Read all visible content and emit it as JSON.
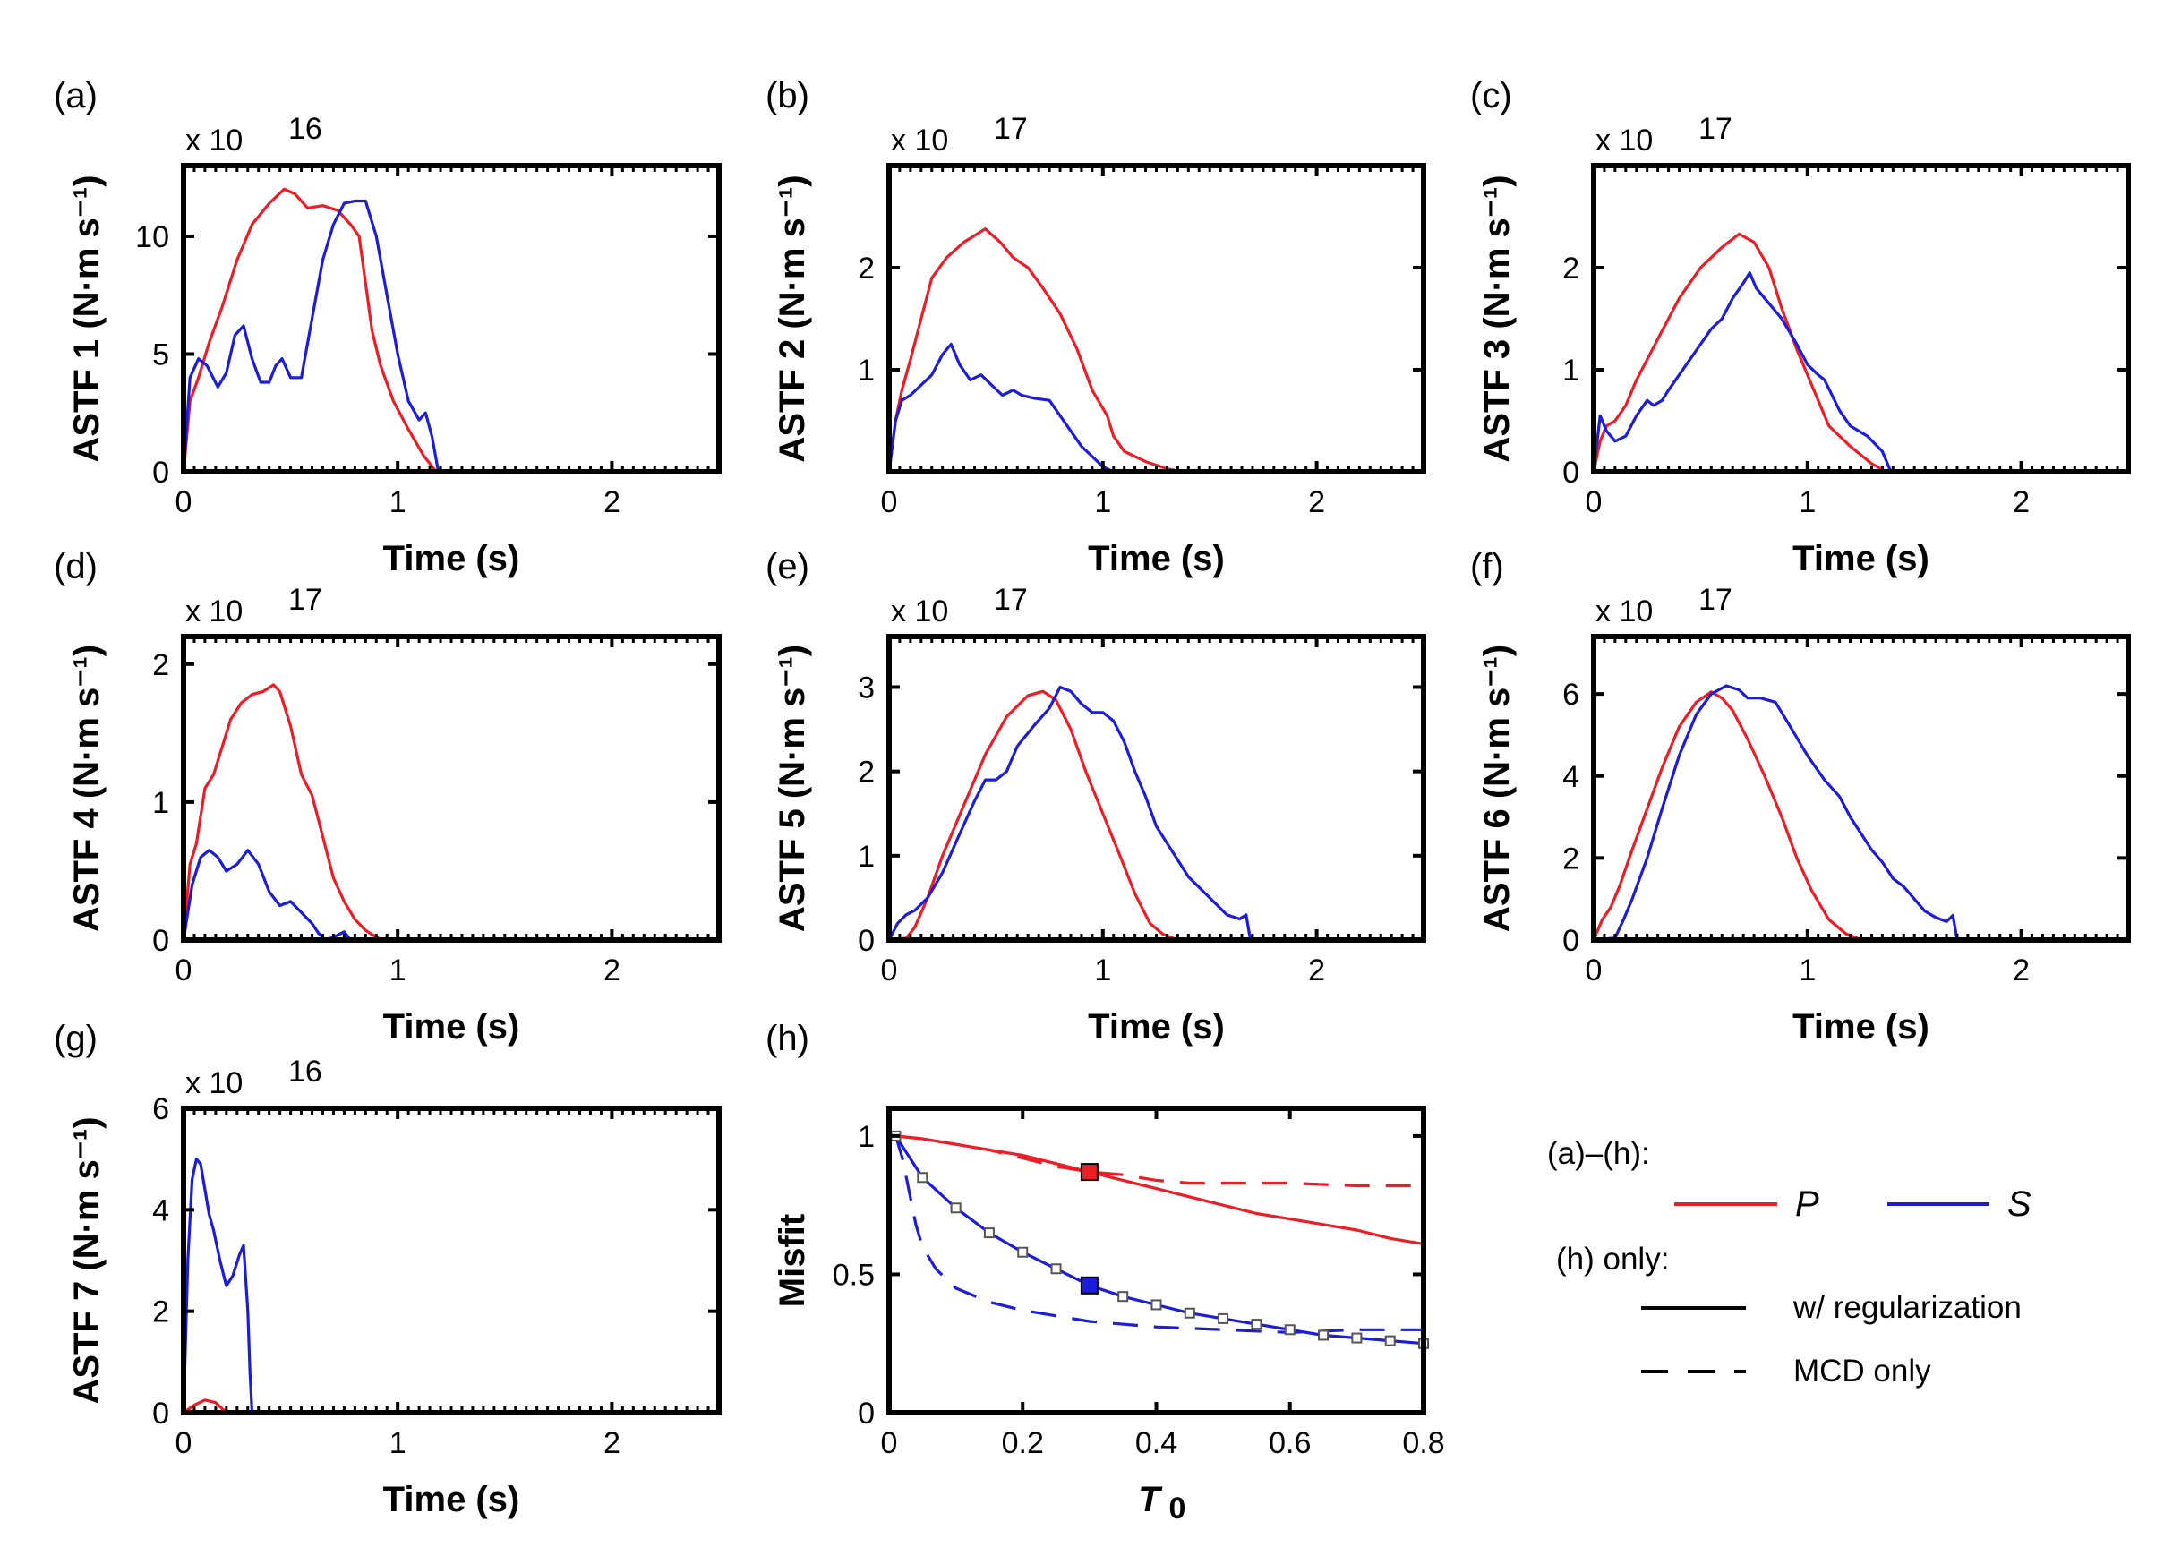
{
  "colors": {
    "P": "#ee1c24",
    "S": "#1c1cdc",
    "axis": "#000000"
  },
  "legend": {
    "heading_all": "(a)–(h):",
    "P_label": "P",
    "S_label": "S",
    "heading_h": "(h) only:",
    "solid_label": "w/ regularization",
    "dashed_label": "MCD only"
  },
  "chart_data": [
    {
      "type": "line",
      "panel": "(a)",
      "xlabel": "Time (s)",
      "ylabel": "ASTF 1 (N·m s⁻¹)",
      "multiplier": "x 10",
      "exponent": "16",
      "xlim": [
        0,
        2.5
      ],
      "ylim": [
        0,
        13
      ],
      "xticks": [
        0,
        1,
        2
      ],
      "yticks": [
        0,
        5,
        10
      ],
      "series": [
        {
          "name": "P",
          "x": [
            0,
            0.03,
            0.07,
            0.12,
            0.18,
            0.25,
            0.32,
            0.4,
            0.47,
            0.52,
            0.58,
            0.65,
            0.72,
            0.78,
            0.82,
            0.85,
            0.88,
            0.92,
            0.98,
            1.05,
            1.12,
            1.18
          ],
          "y": [
            0,
            3.0,
            4.0,
            5.5,
            7.0,
            9.0,
            10.5,
            11.4,
            12.0,
            11.8,
            11.2,
            11.3,
            11.1,
            10.5,
            10.0,
            8.0,
            6.0,
            4.5,
            3.0,
            1.8,
            0.7,
            0
          ]
        },
        {
          "name": "S",
          "x": [
            0,
            0.03,
            0.07,
            0.11,
            0.16,
            0.2,
            0.24,
            0.28,
            0.32,
            0.36,
            0.4,
            0.43,
            0.46,
            0.5,
            0.55,
            0.6,
            0.65,
            0.7,
            0.75,
            0.8,
            0.85,
            0.9,
            0.95,
            1.0,
            1.05,
            1.1,
            1.13,
            1.16,
            1.19
          ],
          "y": [
            0,
            4.0,
            4.8,
            4.5,
            3.6,
            4.2,
            5.8,
            6.2,
            4.8,
            3.8,
            3.8,
            4.5,
            4.8,
            4.0,
            4.0,
            6.5,
            9.0,
            10.5,
            11.4,
            11.5,
            11.5,
            10.0,
            7.5,
            5.0,
            3.0,
            2.2,
            2.5,
            1.5,
            0
          ]
        }
      ]
    },
    {
      "type": "line",
      "panel": "(b)",
      "xlabel": "Time (s)",
      "ylabel": "ASTF 2 (N·m s⁻¹)",
      "multiplier": "x 10",
      "exponent": "17",
      "xlim": [
        0,
        2.5
      ],
      "ylim": [
        0,
        3
      ],
      "xticks": [
        0,
        1,
        2
      ],
      "yticks": [
        1,
        2
      ],
      "series": [
        {
          "name": "P",
          "x": [
            0,
            0.03,
            0.06,
            0.1,
            0.15,
            0.2,
            0.27,
            0.35,
            0.45,
            0.52,
            0.58,
            0.65,
            0.72,
            0.8,
            0.88,
            0.95,
            1.02,
            1.05,
            1.1,
            1.2,
            1.3,
            1.37
          ],
          "y": [
            0,
            0.5,
            0.8,
            1.1,
            1.5,
            1.9,
            2.1,
            2.25,
            2.38,
            2.25,
            2.1,
            2.0,
            1.8,
            1.55,
            1.2,
            0.8,
            0.55,
            0.35,
            0.2,
            0.1,
            0.03,
            0
          ]
        },
        {
          "name": "S",
          "x": [
            0,
            0.03,
            0.06,
            0.1,
            0.15,
            0.2,
            0.25,
            0.29,
            0.33,
            0.38,
            0.43,
            0.48,
            0.53,
            0.58,
            0.62,
            0.68,
            0.75,
            0.8,
            0.85,
            0.9,
            0.95,
            1.0,
            1.05
          ],
          "y": [
            0,
            0.5,
            0.7,
            0.75,
            0.85,
            0.95,
            1.15,
            1.25,
            1.05,
            0.9,
            0.95,
            0.85,
            0.75,
            0.8,
            0.75,
            0.72,
            0.7,
            0.55,
            0.4,
            0.25,
            0.15,
            0.05,
            0
          ]
        }
      ]
    },
    {
      "type": "line",
      "panel": "(c)",
      "xlabel": "Time (s)",
      "ylabel": "ASTF 3 (N·m s⁻¹)",
      "multiplier": "x 10",
      "exponent": "17",
      "xlim": [
        0,
        2.5
      ],
      "ylim": [
        0,
        3
      ],
      "xticks": [
        0,
        1,
        2
      ],
      "yticks": [
        0,
        1,
        2
      ],
      "series": [
        {
          "name": "P",
          "x": [
            0,
            0.03,
            0.06,
            0.1,
            0.15,
            0.2,
            0.3,
            0.4,
            0.5,
            0.6,
            0.68,
            0.75,
            0.82,
            0.88,
            0.95,
            1.0,
            1.05,
            1.1,
            1.2,
            1.3,
            1.37
          ],
          "y": [
            0,
            0.3,
            0.45,
            0.5,
            0.65,
            0.9,
            1.3,
            1.7,
            2.0,
            2.2,
            2.33,
            2.25,
            2.0,
            1.6,
            1.2,
            0.95,
            0.7,
            0.45,
            0.25,
            0.08,
            0
          ]
        },
        {
          "name": "S",
          "x": [
            0,
            0.03,
            0.06,
            0.1,
            0.15,
            0.2,
            0.25,
            0.28,
            0.32,
            0.35,
            0.4,
            0.45,
            0.5,
            0.55,
            0.6,
            0.65,
            0.7,
            0.73,
            0.76,
            0.8,
            0.88,
            0.95,
            1.0,
            1.05,
            1.08,
            1.15,
            1.2,
            1.28,
            1.35,
            1.39
          ],
          "y": [
            0,
            0.55,
            0.4,
            0.3,
            0.35,
            0.55,
            0.7,
            0.65,
            0.7,
            0.8,
            0.95,
            1.1,
            1.25,
            1.4,
            1.5,
            1.7,
            1.85,
            1.95,
            1.8,
            1.7,
            1.5,
            1.25,
            1.05,
            0.95,
            0.9,
            0.6,
            0.45,
            0.35,
            0.2,
            0
          ]
        }
      ]
    },
    {
      "type": "line",
      "panel": "(d)",
      "xlabel": "Time (s)",
      "ylabel": "ASTF 4 (N·m s⁻¹)",
      "multiplier": "x 10",
      "exponent": "17",
      "xlim": [
        0,
        2.5
      ],
      "ylim": [
        0,
        2.2
      ],
      "xticks": [
        0,
        1,
        2
      ],
      "yticks": [
        0,
        1,
        2
      ],
      "series": [
        {
          "name": "P",
          "x": [
            0,
            0.03,
            0.06,
            0.1,
            0.14,
            0.18,
            0.22,
            0.27,
            0.32,
            0.37,
            0.42,
            0.45,
            0.5,
            0.55,
            0.6,
            0.65,
            0.7,
            0.75,
            0.8,
            0.85,
            0.9,
            0.93
          ],
          "y": [
            0,
            0.55,
            0.7,
            1.1,
            1.2,
            1.4,
            1.6,
            1.72,
            1.78,
            1.8,
            1.85,
            1.8,
            1.55,
            1.2,
            1.05,
            0.75,
            0.45,
            0.28,
            0.15,
            0.07,
            0.02,
            0
          ]
        },
        {
          "name": "S",
          "x": [
            0,
            0.04,
            0.08,
            0.12,
            0.16,
            0.2,
            0.25,
            0.3,
            0.35,
            0.4,
            0.45,
            0.5,
            0.55,
            0.6,
            0.63,
            0.66,
            0.7,
            0.75,
            0.78
          ],
          "y": [
            0,
            0.4,
            0.6,
            0.65,
            0.6,
            0.5,
            0.55,
            0.65,
            0.55,
            0.35,
            0.25,
            0.28,
            0.2,
            0.12,
            0.05,
            0.0,
            0.02,
            0.06,
            0
          ]
        }
      ]
    },
    {
      "type": "line",
      "panel": "(e)",
      "xlabel": "Time (s)",
      "ylabel": "ASTF 5 (N·m s⁻¹)",
      "multiplier": "x 10",
      "exponent": "17",
      "xlim": [
        0,
        2.5
      ],
      "ylim": [
        0,
        3.6
      ],
      "xticks": [
        0,
        1,
        2
      ],
      "yticks": [
        0,
        1,
        2,
        3
      ],
      "series": [
        {
          "name": "P",
          "x": [
            0,
            0.08,
            0.12,
            0.18,
            0.25,
            0.35,
            0.45,
            0.55,
            0.65,
            0.72,
            0.78,
            0.85,
            0.92,
            1.0,
            1.08,
            1.15,
            1.22,
            1.28,
            1.33,
            1.37
          ],
          "y": [
            0,
            0.02,
            0.15,
            0.5,
            1.0,
            1.6,
            2.2,
            2.65,
            2.9,
            2.95,
            2.85,
            2.5,
            2.0,
            1.5,
            1.0,
            0.55,
            0.2,
            0.07,
            0.02,
            0
          ]
        },
        {
          "name": "S",
          "x": [
            0,
            0.04,
            0.08,
            0.12,
            0.18,
            0.25,
            0.32,
            0.4,
            0.45,
            0.5,
            0.55,
            0.6,
            0.68,
            0.75,
            0.8,
            0.85,
            0.9,
            0.95,
            1.0,
            1.05,
            1.1,
            1.15,
            1.2,
            1.25,
            1.3,
            1.35,
            1.4,
            1.5,
            1.58,
            1.64,
            1.67,
            1.69
          ],
          "y": [
            0,
            0.2,
            0.3,
            0.35,
            0.5,
            0.8,
            1.2,
            1.65,
            1.9,
            1.9,
            2.0,
            2.3,
            2.55,
            2.75,
            3.0,
            2.95,
            2.8,
            2.7,
            2.7,
            2.6,
            2.35,
            2.0,
            1.7,
            1.35,
            1.15,
            0.95,
            0.75,
            0.5,
            0.3,
            0.25,
            0.3,
            0
          ]
        }
      ]
    },
    {
      "type": "line",
      "panel": "(f)",
      "xlabel": "Time (s)",
      "ylabel": "ASTF 6 (N·m s⁻¹)",
      "multiplier": "x 10",
      "exponent": "17",
      "xlim": [
        0,
        2.5
      ],
      "ylim": [
        0,
        7.4
      ],
      "xticks": [
        0,
        1,
        2
      ],
      "yticks": [
        0,
        2,
        4,
        6
      ],
      "series": [
        {
          "name": "P",
          "x": [
            0,
            0.04,
            0.08,
            0.12,
            0.18,
            0.25,
            0.32,
            0.4,
            0.48,
            0.55,
            0.6,
            0.65,
            0.72,
            0.8,
            0.88,
            0.95,
            1.02,
            1.1,
            1.18,
            1.24,
            1.28
          ],
          "y": [
            0,
            0.5,
            0.8,
            1.3,
            2.2,
            3.2,
            4.2,
            5.2,
            5.8,
            6.05,
            5.9,
            5.6,
            4.9,
            4.0,
            3.0,
            2.0,
            1.2,
            0.5,
            0.15,
            0.03,
            0
          ]
        },
        {
          "name": "S",
          "x": [
            0,
            0.1,
            0.14,
            0.18,
            0.25,
            0.32,
            0.4,
            0.48,
            0.55,
            0.62,
            0.68,
            0.72,
            0.78,
            0.85,
            0.92,
            1.0,
            1.08,
            1.15,
            1.2,
            1.25,
            1.3,
            1.35,
            1.4,
            1.45,
            1.5,
            1.55,
            1.6,
            1.65,
            1.68,
            1.7
          ],
          "y": [
            0,
            0.05,
            0.5,
            1.0,
            2.0,
            3.2,
            4.5,
            5.5,
            6.0,
            6.2,
            6.1,
            5.9,
            5.9,
            5.8,
            5.2,
            4.5,
            3.9,
            3.5,
            3.0,
            2.6,
            2.2,
            1.9,
            1.5,
            1.3,
            1.0,
            0.7,
            0.55,
            0.45,
            0.6,
            0
          ]
        }
      ]
    },
    {
      "type": "line",
      "panel": "(g)",
      "xlabel": "Time (s)",
      "ylabel": "ASTF 7 (N·m s⁻¹)",
      "multiplier": "x 10",
      "exponent": "16",
      "xlim": [
        0,
        2.5
      ],
      "ylim": [
        0,
        6
      ],
      "xticks": [
        0,
        1,
        2
      ],
      "yticks": [
        0,
        2,
        4,
        6
      ],
      "series": [
        {
          "name": "P",
          "x": [
            0,
            0.05,
            0.1,
            0.15,
            0.18,
            0.2
          ],
          "y": [
            0,
            0.15,
            0.25,
            0.2,
            0.08,
            0
          ]
        },
        {
          "name": "S",
          "x": [
            0,
            0.02,
            0.04,
            0.06,
            0.08,
            0.1,
            0.12,
            0.14,
            0.17,
            0.2,
            0.23,
            0.26,
            0.28,
            0.3,
            0.31,
            0.32
          ],
          "y": [
            0,
            3.0,
            4.6,
            5.0,
            4.9,
            4.4,
            3.9,
            3.6,
            3.0,
            2.5,
            2.7,
            3.1,
            3.3,
            2.0,
            0.8,
            0
          ]
        }
      ]
    },
    {
      "type": "line",
      "panel": "(h)",
      "xlabel": "T",
      "xlabel_sub": "0",
      "ylabel": "Misfit",
      "xlim": [
        0,
        0.8
      ],
      "ylim": [
        0,
        1.1
      ],
      "xticks": [
        0,
        0.2,
        0.4,
        0.6,
        0.8
      ],
      "xtick_labels": [
        "0",
        "0.2",
        "0.4",
        "0.6",
        "0.8"
      ],
      "yticks": [
        0,
        0.5,
        1
      ],
      "ytick_labels": [
        "0",
        "0.5",
        "1"
      ],
      "series": [
        {
          "name": "P",
          "style": "solid",
          "x": [
            0.01,
            0.05,
            0.1,
            0.15,
            0.2,
            0.25,
            0.3,
            0.35,
            0.4,
            0.45,
            0.5,
            0.55,
            0.6,
            0.65,
            0.7,
            0.75,
            0.8
          ],
          "y": [
            1.0,
            0.99,
            0.97,
            0.95,
            0.93,
            0.9,
            0.87,
            0.84,
            0.81,
            0.78,
            0.75,
            0.72,
            0.7,
            0.68,
            0.66,
            0.63,
            0.61
          ]
        },
        {
          "name": "P",
          "style": "dashed",
          "x": [
            0.01,
            0.05,
            0.1,
            0.15,
            0.2,
            0.25,
            0.3,
            0.35,
            0.4,
            0.45,
            0.5,
            0.6,
            0.7,
            0.8
          ],
          "y": [
            1.0,
            0.99,
            0.97,
            0.95,
            0.92,
            0.89,
            0.87,
            0.86,
            0.84,
            0.83,
            0.83,
            0.83,
            0.82,
            0.82
          ]
        },
        {
          "name": "S",
          "style": "solid",
          "x": [
            0.01,
            0.05,
            0.1,
            0.15,
            0.2,
            0.25,
            0.3,
            0.35,
            0.4,
            0.45,
            0.5,
            0.55,
            0.6,
            0.65,
            0.7,
            0.75,
            0.8
          ],
          "y": [
            1.0,
            0.85,
            0.74,
            0.65,
            0.58,
            0.52,
            0.46,
            0.42,
            0.39,
            0.36,
            0.34,
            0.32,
            0.3,
            0.28,
            0.27,
            0.26,
            0.25
          ]
        },
        {
          "name": "S",
          "style": "dashed",
          "x": [
            0.01,
            0.02,
            0.03,
            0.04,
            0.05,
            0.07,
            0.1,
            0.15,
            0.2,
            0.25,
            0.3,
            0.4,
            0.5,
            0.6,
            0.7,
            0.8
          ],
          "y": [
            1.0,
            0.92,
            0.8,
            0.68,
            0.6,
            0.52,
            0.45,
            0.4,
            0.37,
            0.35,
            0.33,
            0.31,
            0.3,
            0.29,
            0.3,
            0.3
          ]
        }
      ],
      "open_markers": {
        "x": [
          0.01,
          0.05,
          0.1,
          0.15,
          0.2,
          0.25,
          0.35,
          0.4,
          0.45,
          0.5,
          0.55,
          0.6,
          0.65,
          0.7,
          0.75,
          0.8
        ],
        "y": [
          1.0,
          0.85,
          0.74,
          0.65,
          0.58,
          0.52,
          0.42,
          0.39,
          0.36,
          0.34,
          0.32,
          0.3,
          0.28,
          0.27,
          0.26,
          0.25
        ]
      },
      "selected": [
        {
          "name": "P",
          "x": 0.3,
          "y": 0.87
        },
        {
          "name": "S",
          "x": 0.3,
          "y": 0.46
        }
      ]
    }
  ]
}
